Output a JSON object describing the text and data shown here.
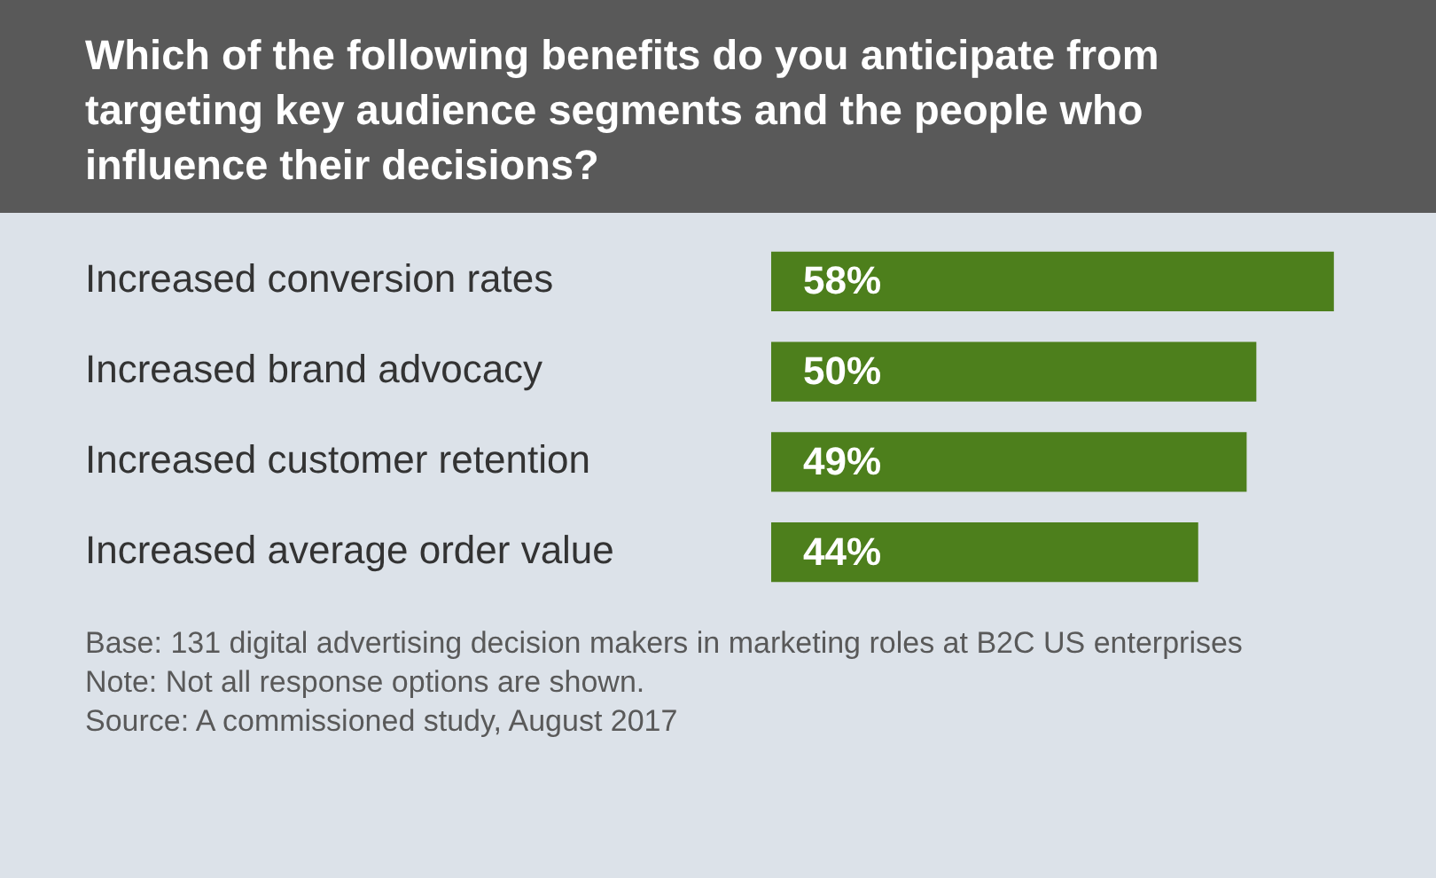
{
  "chart_data": {
    "type": "bar",
    "orientation": "horizontal",
    "title": "Which of the following benefits do you anticipate from targeting key audience segments and the people who influence their decisions?",
    "categories": [
      "Increased conversion rates",
      "Increased brand advocacy",
      "Increased customer retention",
      "Increased average order value"
    ],
    "values": [
      58,
      50,
      49,
      44
    ],
    "value_labels": [
      "58%",
      "50%",
      "49%",
      "44%"
    ],
    "color": "#4d7f1c",
    "legend": false,
    "annotations": [
      "Base: 131 digital advertising decision makers in marketing roles at B2C US enterprises",
      "Note: Not all response options are shown.",
      "Source: A commissioned study, August 2017"
    ]
  }
}
